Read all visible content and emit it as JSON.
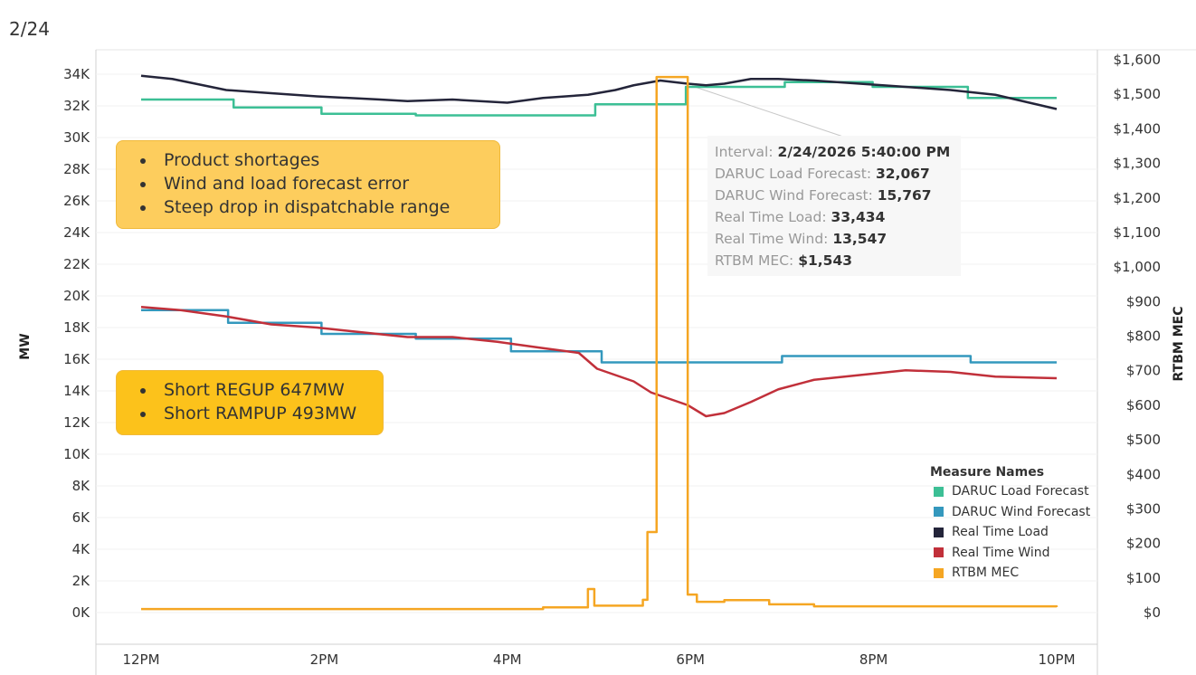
{
  "title": "2/24",
  "annotations": {
    "box1": [
      "Product shortages",
      "Wind and load forecast error",
      "Steep drop in dispatchable range"
    ],
    "box2": [
      "Short REGUP 647MW",
      "Short RAMPUP 493MW"
    ],
    "box1_color": "#fdcd5d",
    "box2_color": "#fcc21b"
  },
  "tooltip": {
    "rows": [
      {
        "label": "Interval:",
        "value": "2/24/2026 5:40:00 PM"
      },
      {
        "label": "DARUC Load Forecast:",
        "value": "32,067"
      },
      {
        "label": "DARUC Wind Forecast:",
        "value": "15,767"
      },
      {
        "label": "Real Time Load:",
        "value": "33,434"
      },
      {
        "label": "Real Time Wind:",
        "value": "13,547"
      },
      {
        "label": "RTBM MEC:",
        "value": "$1,543"
      }
    ]
  },
  "chart_data": {
    "type": "line",
    "title": "2/24",
    "xlabel": "",
    "ylabel": "MW",
    "y2label": "RTBM MEC",
    "x_unit": "hours after 12PM",
    "xlim": [
      0,
      10
    ],
    "x_ticks": [
      {
        "v": 0,
        "label": "12PM"
      },
      {
        "v": 2,
        "label": "2PM"
      },
      {
        "v": 4,
        "label": "4PM"
      },
      {
        "v": 6,
        "label": "6PM"
      },
      {
        "v": 8,
        "label": "8PM"
      },
      {
        "v": 10,
        "label": "10PM"
      }
    ],
    "ylim": [
      0,
      34
    ],
    "y_ticks": [
      "0K",
      "2K",
      "4K",
      "6K",
      "8K",
      "10K",
      "12K",
      "14K",
      "16K",
      "18K",
      "20K",
      "22K",
      "24K",
      "26K",
      "28K",
      "30K",
      "32K",
      "34K"
    ],
    "y2lim": [
      0,
      1600
    ],
    "y2_ticks": [
      "$0",
      "$100",
      "$200",
      "$300",
      "$400",
      "$500",
      "$600",
      "$700",
      "$800",
      "$900",
      "$1,000",
      "$1,100",
      "$1,200",
      "$1,300",
      "$1,400",
      "$1,500",
      "$1,600"
    ],
    "legend_title": "Measure Names",
    "legend_position": "bottom-right",
    "series": [
      {
        "name": "DARUC Load Forecast",
        "color": "#3cbf95",
        "axis": "left",
        "step": true,
        "points": [
          [
            0,
            32.4
          ],
          [
            1.01,
            31.9
          ],
          [
            1.97,
            31.5
          ],
          [
            3.0,
            31.4
          ],
          [
            4.96,
            32.1
          ],
          [
            5.95,
            33.2
          ],
          [
            7.03,
            33.5
          ],
          [
            7.99,
            33.2
          ],
          [
            9.03,
            32.5
          ],
          [
            10,
            32.5
          ]
        ]
      },
      {
        "name": "DARUC Wind Forecast",
        "color": "#3498bd",
        "axis": "left",
        "step": true,
        "points": [
          [
            0,
            19.1
          ],
          [
            0.95,
            18.3
          ],
          [
            1.97,
            17.6
          ],
          [
            3.0,
            17.3
          ],
          [
            4.04,
            16.5
          ],
          [
            5.03,
            15.8
          ],
          [
            7.0,
            16.2
          ],
          [
            9.06,
            15.8
          ],
          [
            10,
            15.8
          ]
        ]
      },
      {
        "name": "Real Time Load",
        "color": "#24253a",
        "axis": "left",
        "step": false,
        "points": [
          [
            0,
            33.9
          ],
          [
            0.34,
            33.7
          ],
          [
            0.93,
            33.0
          ],
          [
            1.42,
            32.8
          ],
          [
            1.92,
            32.6
          ],
          [
            2.61,
            32.4
          ],
          [
            2.91,
            32.3
          ],
          [
            3.4,
            32.4
          ],
          [
            4.0,
            32.2
          ],
          [
            4.39,
            32.5
          ],
          [
            4.88,
            32.7
          ],
          [
            5.18,
            33.0
          ],
          [
            5.38,
            33.3
          ],
          [
            5.67,
            33.6
          ],
          [
            5.97,
            33.4
          ],
          [
            6.17,
            33.3
          ],
          [
            6.37,
            33.4
          ],
          [
            6.66,
            33.7
          ],
          [
            6.96,
            33.7
          ],
          [
            7.35,
            33.6
          ],
          [
            7.85,
            33.4
          ],
          [
            8.35,
            33.2
          ],
          [
            8.84,
            33.0
          ],
          [
            9.33,
            32.7
          ],
          [
            10,
            31.8
          ]
        ]
      },
      {
        "name": "Real Time Wind",
        "color": "#c1303a",
        "axis": "left",
        "step": false,
        "points": [
          [
            0,
            19.3
          ],
          [
            0.43,
            19.1
          ],
          [
            0.93,
            18.7
          ],
          [
            1.42,
            18.2
          ],
          [
            1.92,
            18.0
          ],
          [
            2.41,
            17.7
          ],
          [
            2.91,
            17.4
          ],
          [
            3.4,
            17.4
          ],
          [
            3.89,
            17.1
          ],
          [
            4.39,
            16.7
          ],
          [
            4.78,
            16.4
          ],
          [
            4.98,
            15.4
          ],
          [
            5.38,
            14.6
          ],
          [
            5.57,
            13.9
          ],
          [
            5.97,
            13.1
          ],
          [
            6.17,
            12.4
          ],
          [
            6.37,
            12.6
          ],
          [
            6.66,
            13.3
          ],
          [
            6.96,
            14.1
          ],
          [
            7.35,
            14.7
          ],
          [
            7.85,
            15.0
          ],
          [
            8.35,
            15.3
          ],
          [
            8.84,
            15.2
          ],
          [
            9.33,
            14.9
          ],
          [
            10,
            14.8
          ]
        ]
      },
      {
        "name": "RTBM MEC",
        "color": "#f5a623",
        "axis": "right",
        "step": true,
        "points": [
          [
            0,
            10
          ],
          [
            4.39,
            15
          ],
          [
            4.88,
            68
          ],
          [
            4.95,
            20
          ],
          [
            5.48,
            37
          ],
          [
            5.53,
            233
          ],
          [
            5.63,
            1550
          ],
          [
            5.97,
            52
          ],
          [
            6.07,
            31
          ],
          [
            6.37,
            36
          ],
          [
            6.86,
            24
          ],
          [
            7.35,
            18
          ],
          [
            10,
            16
          ]
        ]
      }
    ]
  }
}
